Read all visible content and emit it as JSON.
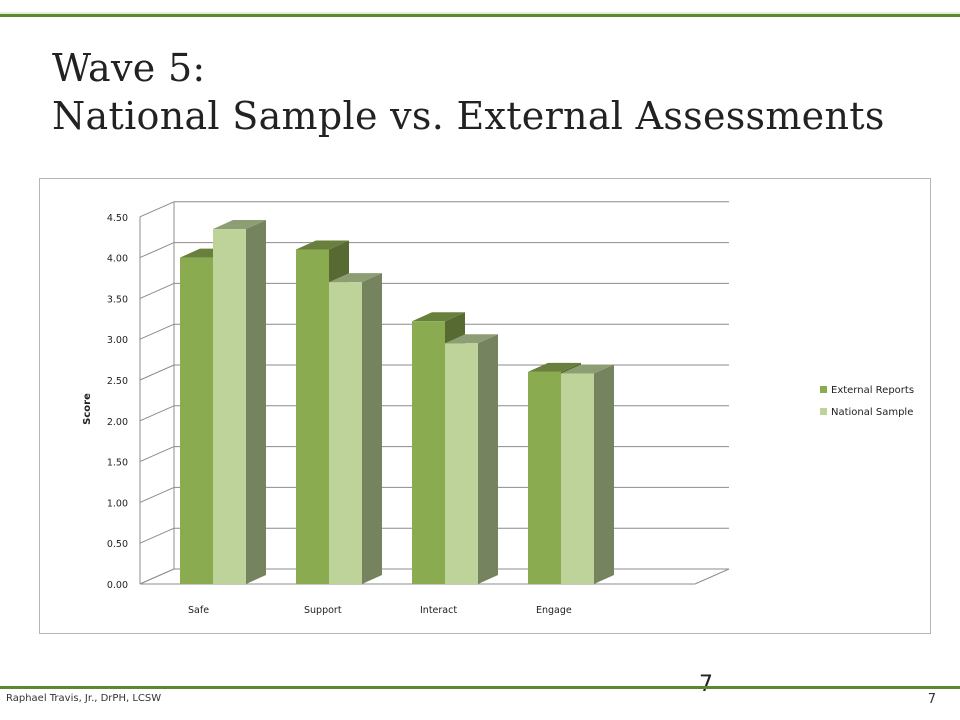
{
  "slide": {
    "title_line1": "Wave 5:",
    "title_line2": "National Sample vs. External Assessments",
    "footer_author": "Raphael Travis, Jr., DrPH, LCSW",
    "page_number": "7",
    "slide_number_center": "7"
  },
  "chart_data": {
    "type": "bar",
    "title": "",
    "xlabel": "",
    "ylabel": "Score",
    "ylim": [
      0,
      4.5
    ],
    "yticks": [
      "0.00",
      "0.50",
      "1.00",
      "1.50",
      "2.00",
      "2.50",
      "3.00",
      "3.50",
      "4.00",
      "4.50"
    ],
    "categories": [
      "Safe",
      "Support",
      "Interact",
      "Engage"
    ],
    "series": [
      {
        "name": "External Reports",
        "values": [
          4.0,
          4.1,
          3.22,
          2.6
        ],
        "color": "#8aab4f"
      },
      {
        "name": "National Sample",
        "values": [
          4.35,
          3.7,
          2.95,
          2.58
        ],
        "color": "#bdd39a"
      }
    ],
    "grid": true,
    "legend_position": "right",
    "style": "3d-clustered-column"
  }
}
